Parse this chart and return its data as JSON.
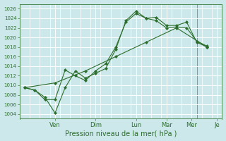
{
  "xlabel": "Pression niveau de la mer( hPa )",
  "background_color": "#cce8ea",
  "grid_color": "#ffffff",
  "line_color": "#2d6e2d",
  "ylim": [
    1003,
    1027
  ],
  "yticks": [
    1004,
    1006,
    1008,
    1010,
    1012,
    1014,
    1016,
    1018,
    1020,
    1022,
    1024,
    1026
  ],
  "series1_x": [
    0,
    1,
    2,
    3,
    4,
    5,
    6,
    7,
    8,
    9,
    10,
    11,
    12,
    13,
    14,
    15,
    16,
    17,
    18
  ],
  "series1_y": [
    1009.5,
    1009.0,
    1007.5,
    1004.2,
    1009.5,
    1013.0,
    1011.5,
    1012.5,
    1013.5,
    1017.5,
    1023.5,
    1025.5,
    1024.0,
    1024.2,
    1022.5,
    1022.5,
    1023.2,
    1019.0,
    1018.0
  ],
  "series2_x": [
    0,
    1,
    2,
    3,
    4,
    5,
    6,
    7,
    8,
    9,
    10,
    11,
    12,
    13,
    14,
    15,
    16,
    17,
    18
  ],
  "series2_y": [
    1009.5,
    1009.0,
    1007.0,
    1007.0,
    1013.2,
    1012.0,
    1011.0,
    1013.0,
    1014.5,
    1018.0,
    1023.2,
    1025.0,
    1024.0,
    1023.5,
    1022.0,
    1022.2,
    1022.0,
    1019.2,
    1018.2
  ],
  "series3_x": [
    0,
    3,
    6,
    9,
    12,
    15,
    18
  ],
  "series3_y": [
    1009.5,
    1010.5,
    1013.0,
    1016.0,
    1019.0,
    1022.0,
    1018.0
  ],
  "xtick_positions": [
    3,
    7,
    11,
    14,
    16.5,
    19
  ],
  "xtick_labels": [
    "Ven",
    "Dim",
    "Lun",
    "Mar",
    "Mer",
    "Je"
  ],
  "xlim": [
    -0.5,
    19.5
  ],
  "vlines": [
    3,
    7,
    11,
    14,
    17
  ]
}
